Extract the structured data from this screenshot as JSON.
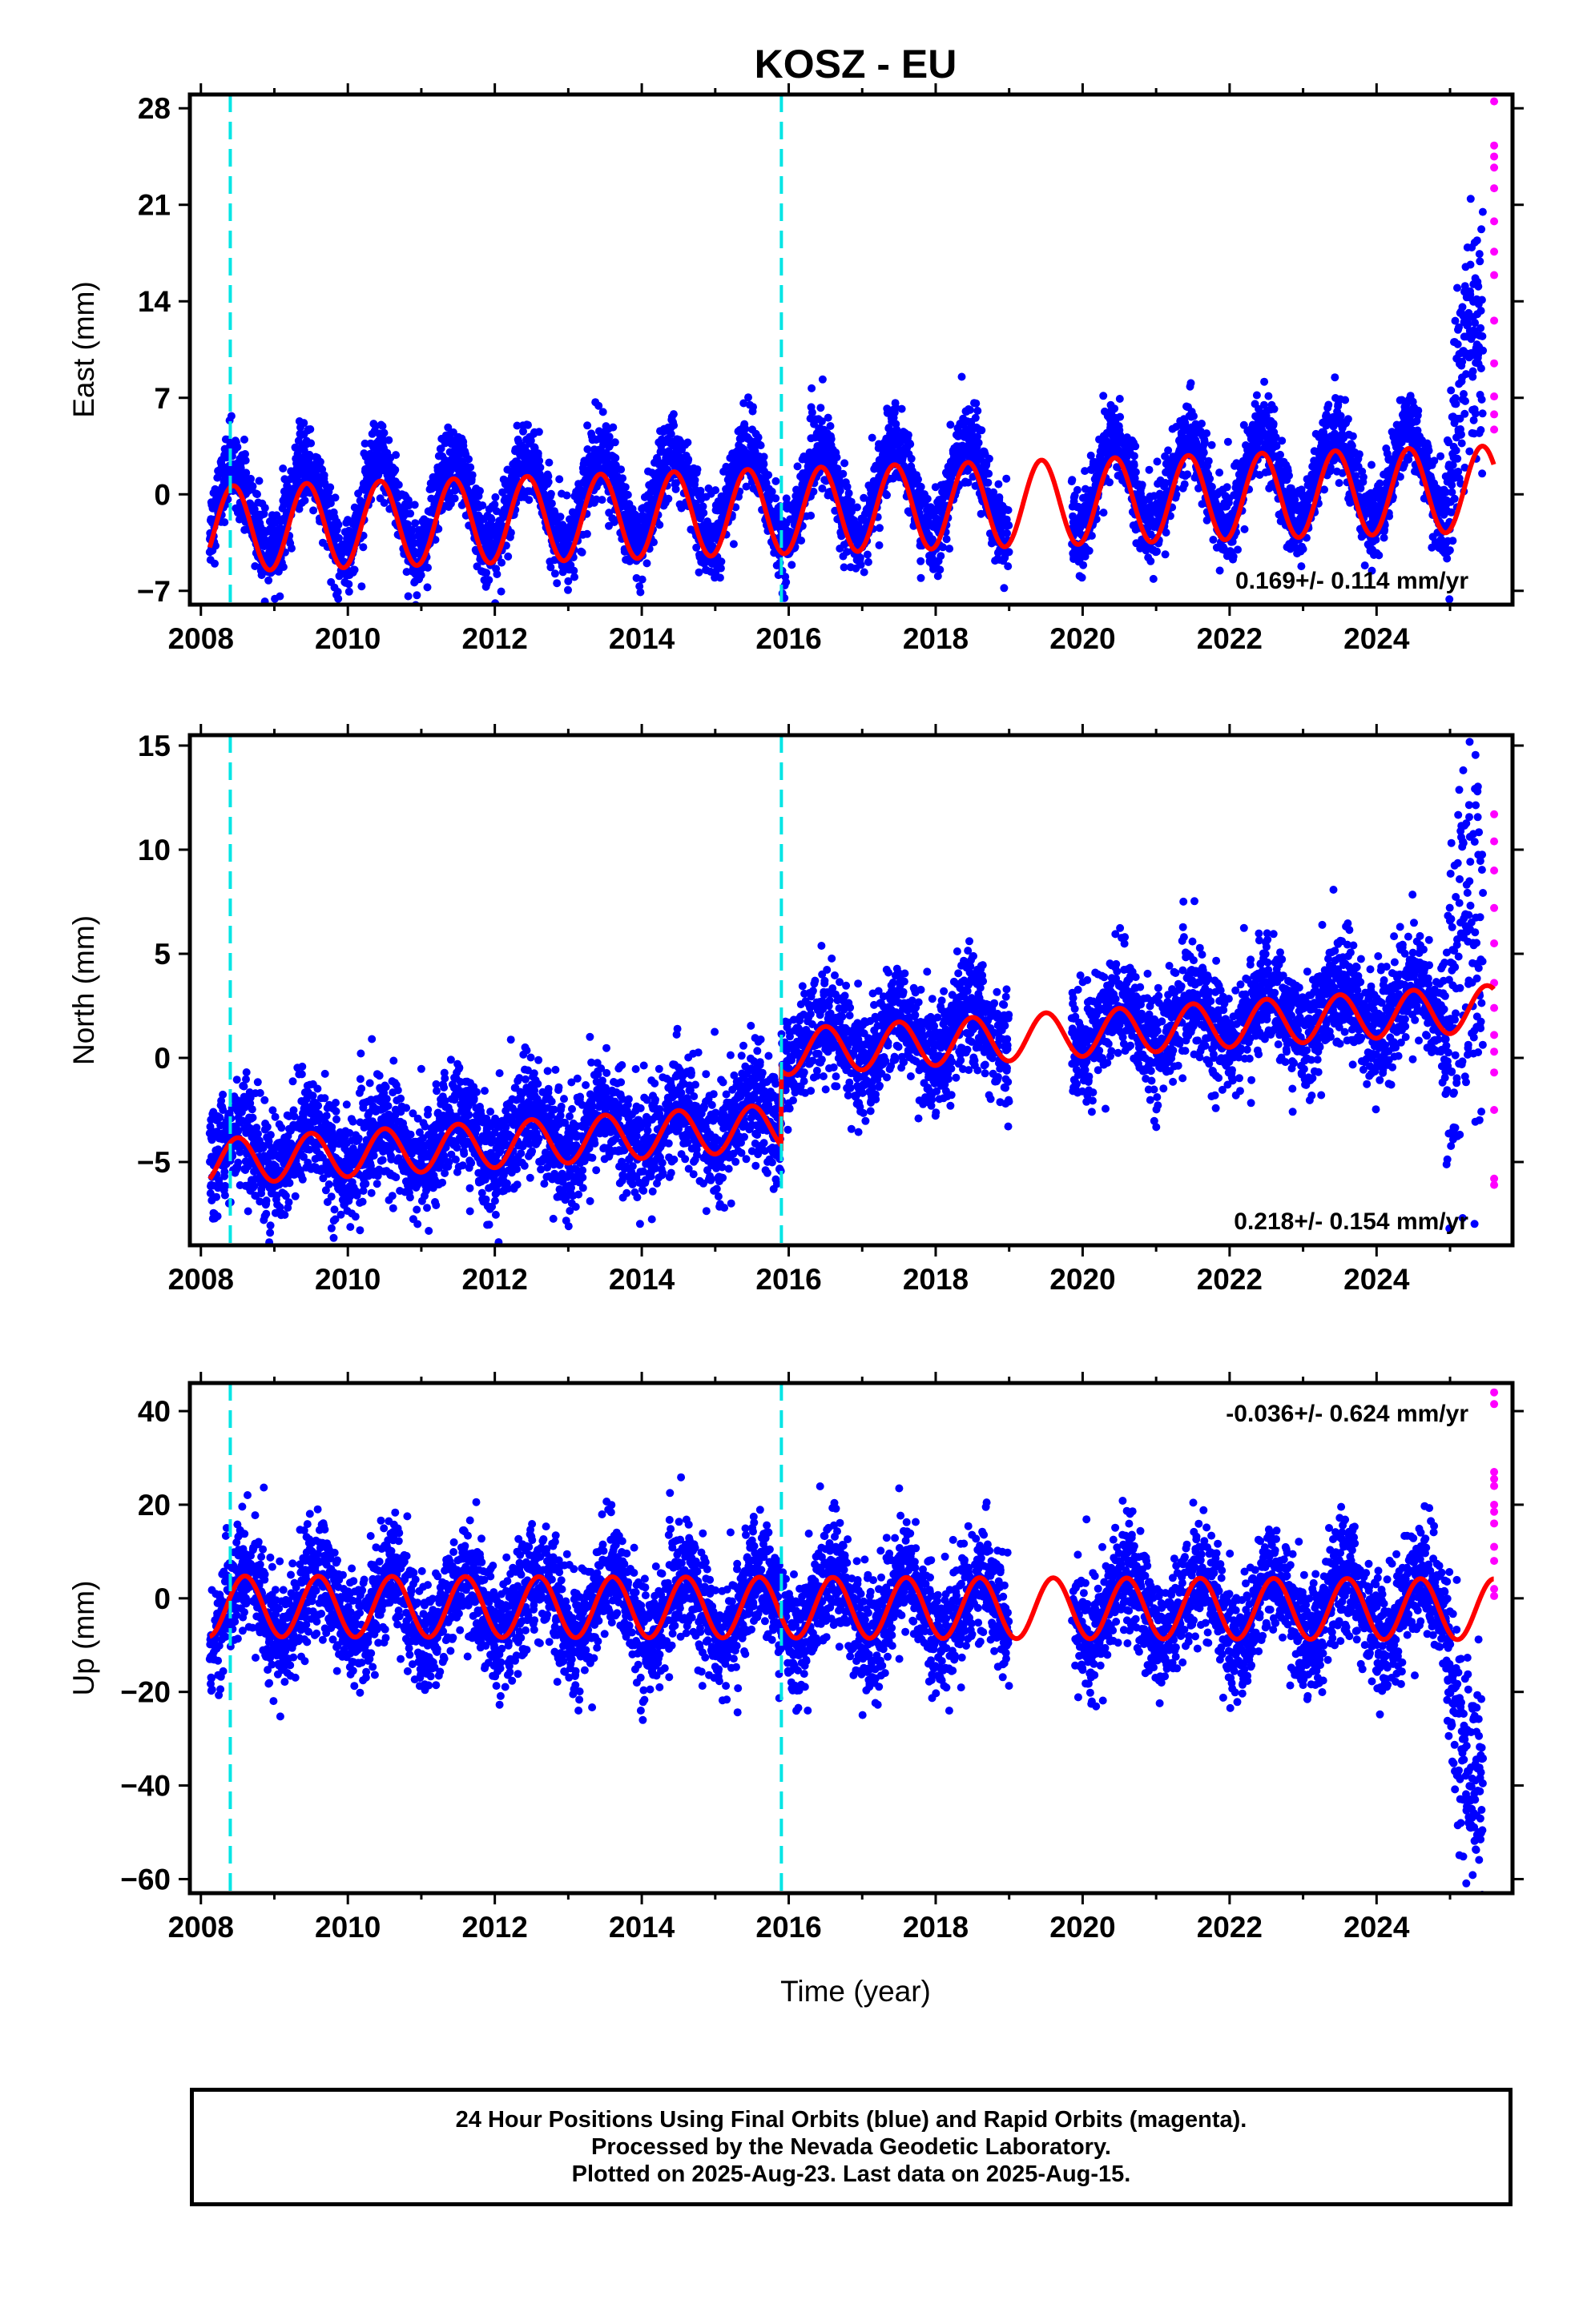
{
  "figure": {
    "title": "KOSZ - EU",
    "xlabel": "Time (year)",
    "caption": [
      "24 Hour Positions Using Final Orbits (blue) and Rapid Orbits (magenta).",
      "Processed by the Nevada Geodetic Laboratory.",
      "Plotted on 2025-Aug-23. Last data on 2025-Aug-15."
    ],
    "colors": {
      "final_orbits": "#0000ff",
      "rapid_orbits": "#ff00ff",
      "model_fit": "#ff0000",
      "equipment_change": "#00e5e5",
      "frame": "#000000"
    }
  },
  "chart_data": [
    {
      "type": "scatter",
      "panel": "east",
      "ylabel": "East (mm)",
      "xlim": [
        2007.85,
        2025.85
      ],
      "ylim": [
        -8,
        29
      ],
      "x_ticks": [
        2008,
        2010,
        2012,
        2014,
        2016,
        2018,
        2020,
        2022,
        2024
      ],
      "y_ticks": [
        -7,
        0,
        7,
        14,
        21,
        28
      ],
      "rate_label": "0.169+/- 0.114 mm/yr",
      "vertical_lines": [
        2008.4,
        2015.9
      ],
      "series": [
        {
          "role": "final_orbits",
          "time_range": [
            2008.12,
            2025.45
          ],
          "offset": 0,
          "trend_per_yr": 0.169,
          "amplitude": 3.3,
          "phase_peak": 0.44,
          "scatter": 1.4,
          "gaps": [
            [
              2019.0,
              2019.85
            ]
          ],
          "late_jump": {
            "start": 2024.95,
            "level": 10,
            "spread": 4
          }
        },
        {
          "role": "rapid_orbits",
          "x": [
            2025.6,
            2025.6,
            2025.6,
            2025.6,
            2025.6,
            2025.6,
            2025.6,
            2025.6,
            2025.6,
            2025.6,
            2025.6,
            2025.6,
            2025.6
          ],
          "y": [
            28.5,
            25.3,
            24.5,
            23.7,
            22.2,
            19.8,
            17.6,
            15.9,
            12.6,
            9.5,
            7.1,
            5.8,
            4.7
          ]
        },
        {
          "role": "model_fit",
          "time_range": [
            2008.12,
            2025.6
          ],
          "offset": -1.2,
          "trend_per_yr": 0.169,
          "amplitude": 3.1,
          "phase_peak": 0.44
        }
      ]
    },
    {
      "type": "scatter",
      "panel": "north",
      "ylabel": "North (mm)",
      "xlim": [
        2007.85,
        2025.85
      ],
      "ylim": [
        -9,
        15.5
      ],
      "x_ticks": [
        2008,
        2010,
        2012,
        2014,
        2016,
        2018,
        2020,
        2022,
        2024
      ],
      "y_ticks": [
        -5,
        0,
        5,
        10,
        15
      ],
      "rate_label": "0.218+/- 0.154 mm/yr",
      "vertical_lines": [
        2008.4,
        2015.9
      ],
      "series": [
        {
          "role": "final_orbits",
          "time_range": [
            2008.12,
            2025.45
          ],
          "offset": -3.0,
          "trend_per_yr": 0.218,
          "amplitude": 1.1,
          "phase_peak": 0.5,
          "scatter": 1.3,
          "steps": [
            {
              "at": 2015.9,
              "size": 3.6
            }
          ],
          "gaps": [
            [
              2019.0,
              2019.85
            ]
          ],
          "late_jump": {
            "start": 2024.95,
            "level": 6,
            "spread": 5
          }
        },
        {
          "role": "rapid_orbits",
          "x": [
            2025.6,
            2025.6,
            2025.6,
            2025.6,
            2025.6,
            2025.6,
            2025.6,
            2025.6,
            2025.6,
            2025.6,
            2025.6,
            2025.6,
            2025.6
          ],
          "y": [
            11.7,
            10.4,
            9.0,
            7.2,
            5.5,
            3.6,
            2.4,
            1.1,
            0.3,
            -0.7,
            -2.5,
            -5.8,
            -6.1
          ]
        },
        {
          "role": "model_fit",
          "time_range": [
            2008.12,
            2025.6
          ],
          "offset": -3.3,
          "trend_per_yr": 0.218,
          "amplitude": 1.1,
          "phase_peak": 0.5,
          "steps": [
            {
              "at": 2015.9,
              "size": 3.6
            }
          ]
        }
      ]
    },
    {
      "type": "scatter",
      "panel": "up",
      "ylabel": "Up (mm)",
      "xlim": [
        2007.85,
        2025.85
      ],
      "ylim": [
        -63,
        46
      ],
      "x_ticks": [
        2008,
        2010,
        2012,
        2014,
        2016,
        2018,
        2020,
        2022,
        2024
      ],
      "y_ticks": [
        -60,
        -40,
        -20,
        0,
        20,
        40
      ],
      "rate_label": "-0.036+/- 0.624 mm/yr",
      "vertical_lines": [
        2008.4,
        2015.9
      ],
      "series": [
        {
          "role": "final_orbits",
          "time_range": [
            2008.12,
            2025.45
          ],
          "offset": -2,
          "trend_per_yr": -0.036,
          "amplitude": 7,
          "phase_peak": 0.6,
          "scatter": 6,
          "gaps": [
            [
              2019.0,
              2019.85
            ]
          ],
          "late_jump": {
            "start": 2024.95,
            "level": -38,
            "spread": 12
          }
        },
        {
          "role": "rapid_orbits",
          "x": [
            2025.6,
            2025.6,
            2025.6,
            2025.6,
            2025.6,
            2025.6,
            2025.6,
            2025.6,
            2025.6,
            2025.6,
            2025.6,
            2025.6
          ],
          "y": [
            44.0,
            41.5,
            27.0,
            25.5,
            24.0,
            20.0,
            18.5,
            16.0,
            11.0,
            8.0,
            2.0,
            0.5
          ]
        },
        {
          "role": "model_fit",
          "time_range": [
            2008.12,
            2025.6
          ],
          "offset": -2,
          "trend_per_yr": -0.036,
          "amplitude": 6.5,
          "phase_peak": 0.6
        }
      ]
    }
  ]
}
